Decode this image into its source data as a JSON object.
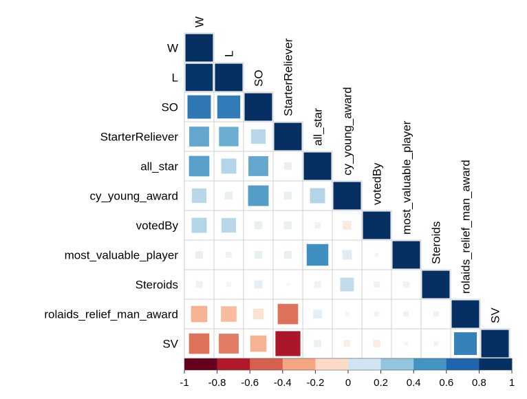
{
  "chart_data": {
    "type": "heatmap",
    "variables": [
      "W",
      "L",
      "SO",
      "StarterReliever",
      "all_star",
      "cy_young_award",
      "votedBy",
      "most_valuable_player",
      "Steroids",
      "rolaids_relief_man_award",
      "SV"
    ],
    "matrix_lower": [
      [
        1.0
      ],
      [
        0.98,
        1.0
      ],
      [
        0.72,
        0.7,
        1.0
      ],
      [
        0.52,
        0.5,
        0.28,
        1.0
      ],
      [
        0.55,
        0.3,
        0.52,
        0.08,
        1.0
      ],
      [
        0.28,
        0.08,
        0.56,
        0.08,
        0.3,
        1.0
      ],
      [
        0.3,
        0.28,
        0.08,
        0.08,
        0.05,
        -0.1,
        1.0
      ],
      [
        0.08,
        0.05,
        0.08,
        0.08,
        0.62,
        0.12,
        0.02,
        1.0
      ],
      [
        0.06,
        0.03,
        0.09,
        0.01,
        0.06,
        0.25,
        -0.05,
        0.05,
        1.0
      ],
      [
        -0.35,
        -0.32,
        -0.15,
        -0.55,
        0.1,
        0.02,
        -0.03,
        0.04,
        0.04,
        1.0
      ],
      [
        -0.55,
        -0.52,
        -0.35,
        -0.82,
        0.07,
        -0.06,
        -0.07,
        0.02,
        -0.03,
        0.68,
        1.0
      ]
    ],
    "color_scale": {
      "ticks": [
        "-1",
        "-0.8",
        "-0.6",
        "-0.4",
        "-0.2",
        "0",
        "0.2",
        "0.4",
        "0.6",
        "0.8",
        "1"
      ],
      "colors": [
        "#67001F",
        "#B2182B",
        "#D6604D",
        "#F4A582",
        "#FDDBC7",
        "#E8F0F6",
        "#D1E5F0",
        "#92C5DE",
        "#4393C3",
        "#2166AC",
        "#053061"
      ]
    },
    "grid": true,
    "legend": "bottom"
  }
}
